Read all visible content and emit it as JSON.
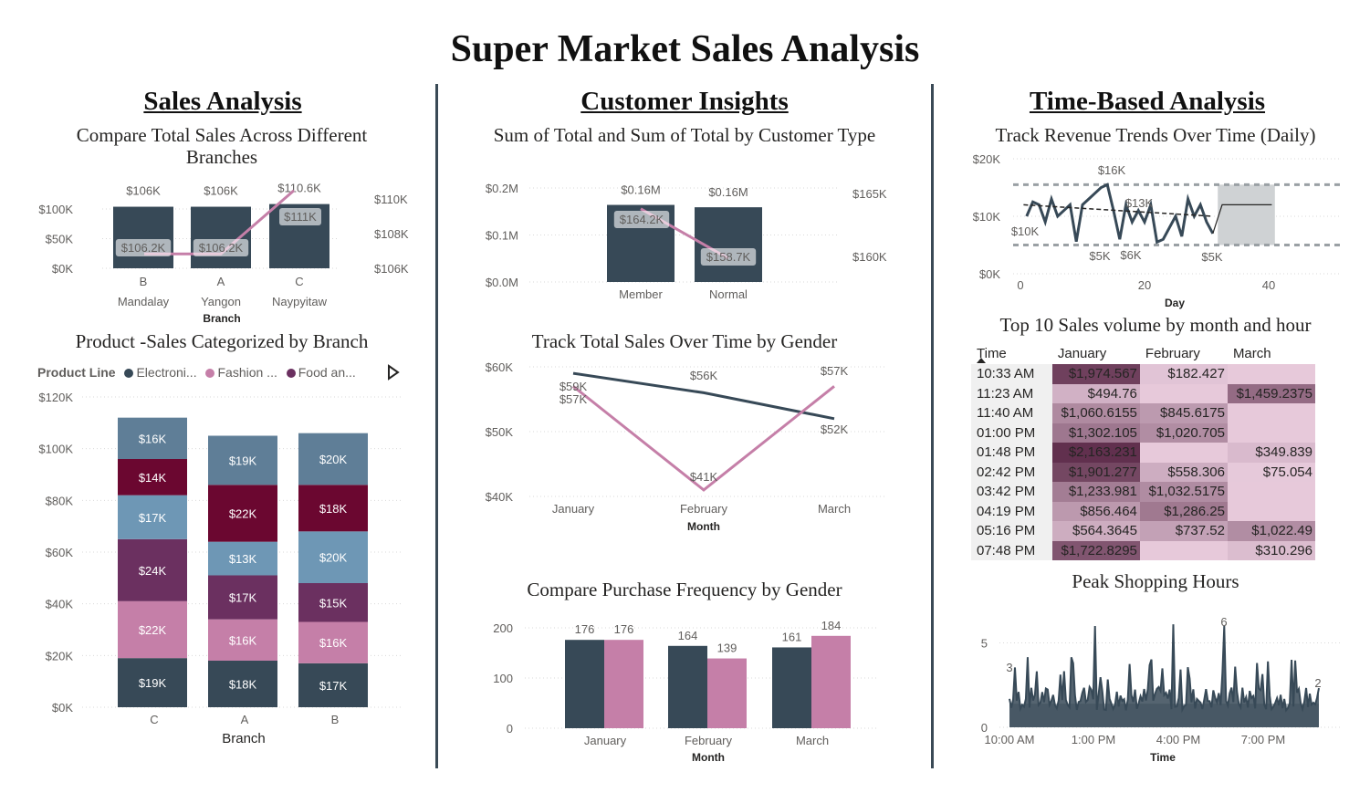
{
  "title": "Super Market Sales Analysis",
  "sections": {
    "sales": "Sales Analysis",
    "customer": "Customer Insights",
    "time": "Time-Based Analysis"
  },
  "colors": {
    "navy": "#374957",
    "pink": "#c57fa8",
    "blue": "#5f7e97",
    "lightblue": "#6e97b5",
    "maroon": "#6b0730",
    "purple": "#6b3060",
    "divider": "#3a4a56"
  },
  "chart_data": [
    {
      "id": "branch_sales",
      "type": "bar",
      "title": "Compare Total Sales Across Different Branches",
      "categories": [
        "B",
        "A",
        "C"
      ],
      "subcategories": [
        "Mandalay",
        "Yangon",
        "Naypyitaw"
      ],
      "xlabel": "Branch",
      "ylim": [
        0,
        110000
      ],
      "y_ticks": [
        "$0K",
        "$50K",
        "$100K"
      ],
      "y2_ticks": [
        "$106K",
        "$108K",
        "$110K"
      ],
      "y2lim": [
        105200,
        110900
      ],
      "series": [
        {
          "values": [
            106000,
            106000,
            110600
          ],
          "labels": [
            "$106K",
            "$106K",
            "$110.6K"
          ]
        },
        {
          "values": [
            106200,
            106200,
            110600
          ],
          "labels": [
            "$106.2K",
            "$106.2K",
            "$111K"
          ]
        }
      ]
    },
    {
      "id": "product_branch",
      "type": "bar",
      "stacked": true,
      "title": "Product -Sales Categorized by Branch",
      "legend_title": "Product Line",
      "legend": [
        "Electroni...",
        "Fashion ...",
        "Food an..."
      ],
      "categories": [
        "C",
        "A",
        "B"
      ],
      "xlabel": "Branch",
      "ylim": [
        0,
        120000
      ],
      "y_ticks": [
        "$0K",
        "$20K",
        "$40K",
        "$60K",
        "$80K",
        "$100K",
        "$120K"
      ],
      "series": [
        {
          "values": [
            19,
            18,
            17
          ],
          "labels": [
            "$19K",
            "$18K",
            "$17K"
          ],
          "color": "#374957"
        },
        {
          "values": [
            22,
            16,
            16
          ],
          "labels": [
            "$22K",
            "$16K",
            "$16K"
          ],
          "color": "#c57fa8"
        },
        {
          "values": [
            24,
            17,
            15
          ],
          "labels": [
            "$24K",
            "$17K",
            "$15K"
          ],
          "color": "#6b3060"
        },
        {
          "values": [
            17,
            13,
            20
          ],
          "labels": [
            "$17K",
            "$13K",
            "$20K"
          ],
          "color": "#6e97b5"
        },
        {
          "values": [
            14,
            22,
            18
          ],
          "labels": [
            "$14K",
            "$22K",
            "$18K"
          ],
          "color": "#6b0730"
        },
        {
          "values": [
            16,
            19,
            20
          ],
          "labels": [
            "$16K",
            "$19K",
            "$20K"
          ],
          "color": "#5f7e97"
        }
      ]
    },
    {
      "id": "customer_type",
      "type": "bar",
      "title": "Sum of Total and Sum of Total by Customer Type",
      "categories": [
        "Member",
        "Normal"
      ],
      "ylim": [
        0,
        0.2
      ],
      "y_ticks": [
        "$0.0M",
        "$0.1M",
        "$0.2M"
      ],
      "y2_ticks": [
        "$160K",
        "$165K"
      ],
      "y2lim": [
        157000,
        166500
      ],
      "series": [
        {
          "values": [
            0.164,
            0.159
          ],
          "labels": [
            "$0.16M",
            "$0.16M"
          ]
        },
        {
          "values": [
            164200,
            158700
          ],
          "labels": [
            "$164.2K",
            "$158.7K"
          ]
        }
      ]
    },
    {
      "id": "gender_month",
      "type": "line",
      "title": "Track Total Sales Over Time by Gender",
      "categories": [
        "January",
        "February",
        "March"
      ],
      "xlabel": "Month",
      "ylim": [
        40000,
        60000
      ],
      "y_ticks": [
        "$40K",
        "$50K",
        "$60K"
      ],
      "series": [
        {
          "values": [
            59000,
            56000,
            52000
          ],
          "labels": [
            "$59K",
            "$56K",
            "$52K"
          ],
          "color": "#374957"
        },
        {
          "values": [
            57000,
            41000,
            57000
          ],
          "labels": [
            "$57K",
            "$41K",
            "$57K"
          ],
          "color": "#c57fa8"
        }
      ]
    },
    {
      "id": "purchase_freq",
      "type": "bar",
      "title": "Compare Purchase Frequency by Gender",
      "categories": [
        "January",
        "February",
        "March"
      ],
      "xlabel": "Month",
      "ylim": [
        0,
        200
      ],
      "y_ticks": [
        "0",
        "100",
        "200"
      ],
      "series": [
        {
          "values": [
            176,
            164,
            161
          ],
          "color": "#374957"
        },
        {
          "values": [
            176,
            139,
            184
          ],
          "color": "#c57fa8"
        }
      ]
    },
    {
      "id": "daily_revenue",
      "type": "line",
      "title": "Track Revenue Trends Over Time (Daily)",
      "xlabel": "Day",
      "x_ticks": [
        "0",
        "20",
        "40"
      ],
      "xlim": [
        0,
        50
      ],
      "y_ticks": [
        "$0K",
        "$10K",
        "$20K"
      ],
      "ylim": [
        0,
        20000
      ],
      "x": [
        1,
        2,
        3,
        4,
        5,
        6,
        7,
        8,
        9,
        10,
        11,
        12,
        13,
        14,
        15,
        16,
        17,
        18,
        19,
        20,
        21,
        22,
        23,
        24,
        25,
        26,
        27,
        28,
        29,
        30,
        31
      ],
      "values": [
        10000,
        12500,
        12000,
        9000,
        13000,
        10000,
        11000,
        12000,
        5600,
        12000,
        13000,
        14000,
        15000,
        15500,
        11000,
        6000,
        12000,
        9000,
        11000,
        9000,
        12000,
        5500,
        6000,
        8000,
        10000,
        6500,
        13000,
        10000,
        12000,
        9000,
        7000
      ],
      "annotations": [
        "$16K",
        "$10K",
        "$13K",
        "$5K",
        "$6K",
        "$5K"
      ],
      "forecast_band": [
        5000,
        15500
      ]
    },
    {
      "id": "top10_heatmap",
      "type": "table",
      "title": "Top 10 Sales volume by month and hour",
      "columns": [
        "Time",
        "January",
        "February",
        "March"
      ],
      "rows": [
        [
          "10:33 AM",
          "$1,974.567",
          "$182.427",
          ""
        ],
        [
          "11:23 AM",
          "$494.76",
          "",
          "$1,459.2375"
        ],
        [
          "11:40 AM",
          "$1,060.6155",
          "$845.6175",
          ""
        ],
        [
          "01:00 PM",
          "$1,302.105",
          "$1,020.705",
          ""
        ],
        [
          "01:48 PM",
          "$2,163.231",
          "",
          "$349.839"
        ],
        [
          "02:42 PM",
          "$1,901.277",
          "$558.306",
          "$75.054"
        ],
        [
          "03:42 PM",
          "$1,233.981",
          "$1,032.5175",
          ""
        ],
        [
          "04:19 PM",
          "$856.464",
          "$1,286.25",
          ""
        ],
        [
          "05:16 PM",
          "$564.3645",
          "$737.52",
          "$1,022.49"
        ],
        [
          "07:48 PM",
          "$1,722.8295",
          "",
          "$310.296"
        ]
      ]
    },
    {
      "id": "peak_hours",
      "type": "area",
      "title": "Peak Shopping Hours",
      "xlabel": "Time",
      "x_ticks": [
        "10:00 AM",
        "1:00 PM",
        "4:00 PM",
        "7:00 PM"
      ],
      "ylim": [
        0,
        7
      ],
      "y_ticks": [
        "0",
        "5"
      ],
      "annotations": [
        "3",
        "6",
        "2"
      ]
    }
  ]
}
